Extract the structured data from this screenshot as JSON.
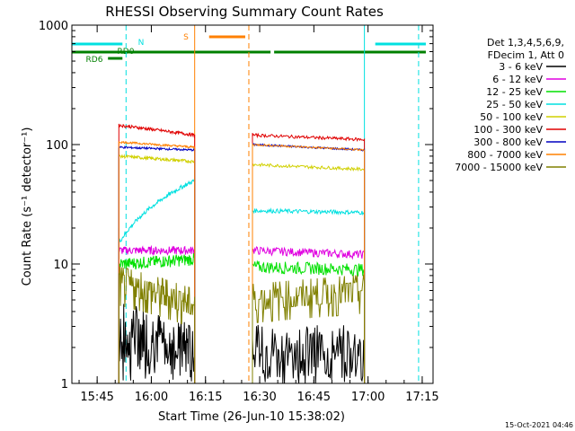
{
  "title": "RHESSI Observing Summary Count Rates",
  "footer_timestamp": "15-Oct-2021 04:46",
  "chart_data": {
    "type": "line",
    "title": "RHESSI Observing Summary Count Rates",
    "xlabel": "Start Time (26-Jun-10 15:38:02)",
    "ylabel": "Count Rate (s⁻¹ detector⁻¹)",
    "y_scale": "log",
    "ylim": [
      1,
      1000
    ],
    "xlim": [
      "15:38",
      "17:18"
    ],
    "x_ticks": [
      "15:45",
      "16:00",
      "16:15",
      "16:30",
      "16:45",
      "17:00",
      "17:15"
    ],
    "y_ticks": [
      "1",
      "10",
      "100",
      "1000"
    ],
    "legend_position": "right",
    "legend_header": [
      "Det 1,3,4,5,6,9,",
      "FDecim 1, Att 0"
    ],
    "series": [
      {
        "name": "3 - 6 keV",
        "color": "#000000",
        "base": 3.0,
        "noise": 0.55,
        "spiky": true,
        "seg1": {
          "t0": "15:51",
          "t1": "16:12",
          "v0": 3.2,
          "v1": 2.0,
          "start": 2.5
        },
        "seg2": {
          "t0": "16:28",
          "t1": "16:59",
          "v0": 2.0,
          "v1": 2.0,
          "start": 1.8
        }
      },
      {
        "name": "6 - 12 keV",
        "color": "#e000e0",
        "base": 13,
        "noise": 0.08,
        "seg1": {
          "t0": "15:51",
          "t1": "16:12",
          "v0": 13,
          "v1": 13,
          "start": 13
        },
        "seg2": {
          "t0": "16:28",
          "t1": "16:59",
          "v0": 13,
          "v1": 12,
          "start": 13
        }
      },
      {
        "name": "12 - 25 keV",
        "color": "#00e000",
        "base": 10,
        "noise": 0.12,
        "seg1": {
          "t0": "15:51",
          "t1": "16:12",
          "v0": 10,
          "v1": 11,
          "start": 10
        },
        "seg2": {
          "t0": "16:28",
          "t1": "16:59",
          "v0": 9.5,
          "v1": 9,
          "start": 10
        }
      },
      {
        "name": "25 - 50 keV",
        "color": "#00e0e0",
        "base": 30,
        "noise": 0.04,
        "seg1": {
          "t0": "15:51",
          "t1": "16:12",
          "v0": 15,
          "v1": 50,
          "start": 20
        },
        "seg2": {
          "t0": "16:28",
          "t1": "16:59",
          "v0": 28,
          "v1": 27,
          "start": 28
        }
      },
      {
        "name": "50 - 100 keV",
        "color": "#d0d000",
        "base": 80,
        "noise": 0.03,
        "seg1": {
          "t0": "15:51",
          "t1": "16:12",
          "v0": 80,
          "v1": 72,
          "start": 20
        },
        "seg2": {
          "t0": "16:28",
          "t1": "16:59",
          "v0": 68,
          "v1": 62,
          "start": 68
        }
      },
      {
        "name": "100 - 300 keV",
        "color": "#e00000",
        "base": 130,
        "noise": 0.03,
        "seg1": {
          "t0": "15:51",
          "t1": "16:12",
          "v0": 145,
          "v1": 120,
          "start": 43
        },
        "seg2": {
          "t0": "16:28",
          "t1": "16:59",
          "v0": 120,
          "v1": 110,
          "start": 125
        }
      },
      {
        "name": "300 - 800 keV",
        "color": "#0000c0",
        "base": 95,
        "noise": 0.02,
        "seg1": {
          "t0": "15:51",
          "t1": "16:12",
          "v0": 95,
          "v1": 90,
          "start": 85
        },
        "seg2": {
          "t0": "16:28",
          "t1": "16:59",
          "v0": 100,
          "v1": 90,
          "start": 100
        }
      },
      {
        "name": "800 - 7000 keV",
        "color": "#ff8000",
        "base": 100,
        "noise": 0.02,
        "seg1": {
          "t0": "15:51",
          "t1": "16:12",
          "v0": 105,
          "v1": 95,
          "start": 100
        },
        "seg2": {
          "t0": "16:28",
          "t1": "16:59",
          "v0": 100,
          "v1": 90,
          "start": 100
        }
      },
      {
        "name": "7000 - 15000 keV",
        "color": "#808000",
        "base": 6,
        "noise": 0.15,
        "stepped": true,
        "seg1": {
          "t0": "15:51",
          "t1": "16:12",
          "v0": 7,
          "v1": 4.5,
          "start": 6
        },
        "seg2": {
          "t0": "16:28",
          "t1": "16:59",
          "v0": 5,
          "v1": 6,
          "start": 4
        }
      }
    ],
    "flag_labels": [
      {
        "text": "N",
        "color": "#00e0e0"
      },
      {
        "text": "RD0",
        "color": "#008000"
      },
      {
        "text": "RD6",
        "color": "#008000"
      },
      {
        "text": "S",
        "color": "#ff8000"
      }
    ],
    "flag_bars": [
      {
        "color": "#00e0e0",
        "row": 1,
        "t0": "15:38",
        "t1": "15:52"
      },
      {
        "color": "#00e0e0",
        "row": 1,
        "t0": "17:02",
        "t1": "17:16"
      },
      {
        "color": "#008000",
        "row": 2,
        "t0": "15:38",
        "t1": "16:33"
      },
      {
        "color": "#008000",
        "row": 2,
        "t0": "16:34",
        "t1": "17:16"
      },
      {
        "color": "#008000",
        "row": 3,
        "t0": "15:48",
        "t1": "15:52"
      },
      {
        "color": "#ff8000",
        "row": 0,
        "t0": "16:16",
        "t1": "16:26"
      }
    ],
    "vertical_markers": [
      {
        "t": "15:53",
        "color": "#00e0e0",
        "dashed": true
      },
      {
        "t": "16:12",
        "color": "#ff8000",
        "dashed": false
      },
      {
        "t": "16:27",
        "color": "#ff8000",
        "dashed": true
      },
      {
        "t": "16:59",
        "color": "#00e0e0",
        "dashed": false
      },
      {
        "t": "17:14",
        "color": "#00e0e0",
        "dashed": true
      }
    ]
  }
}
